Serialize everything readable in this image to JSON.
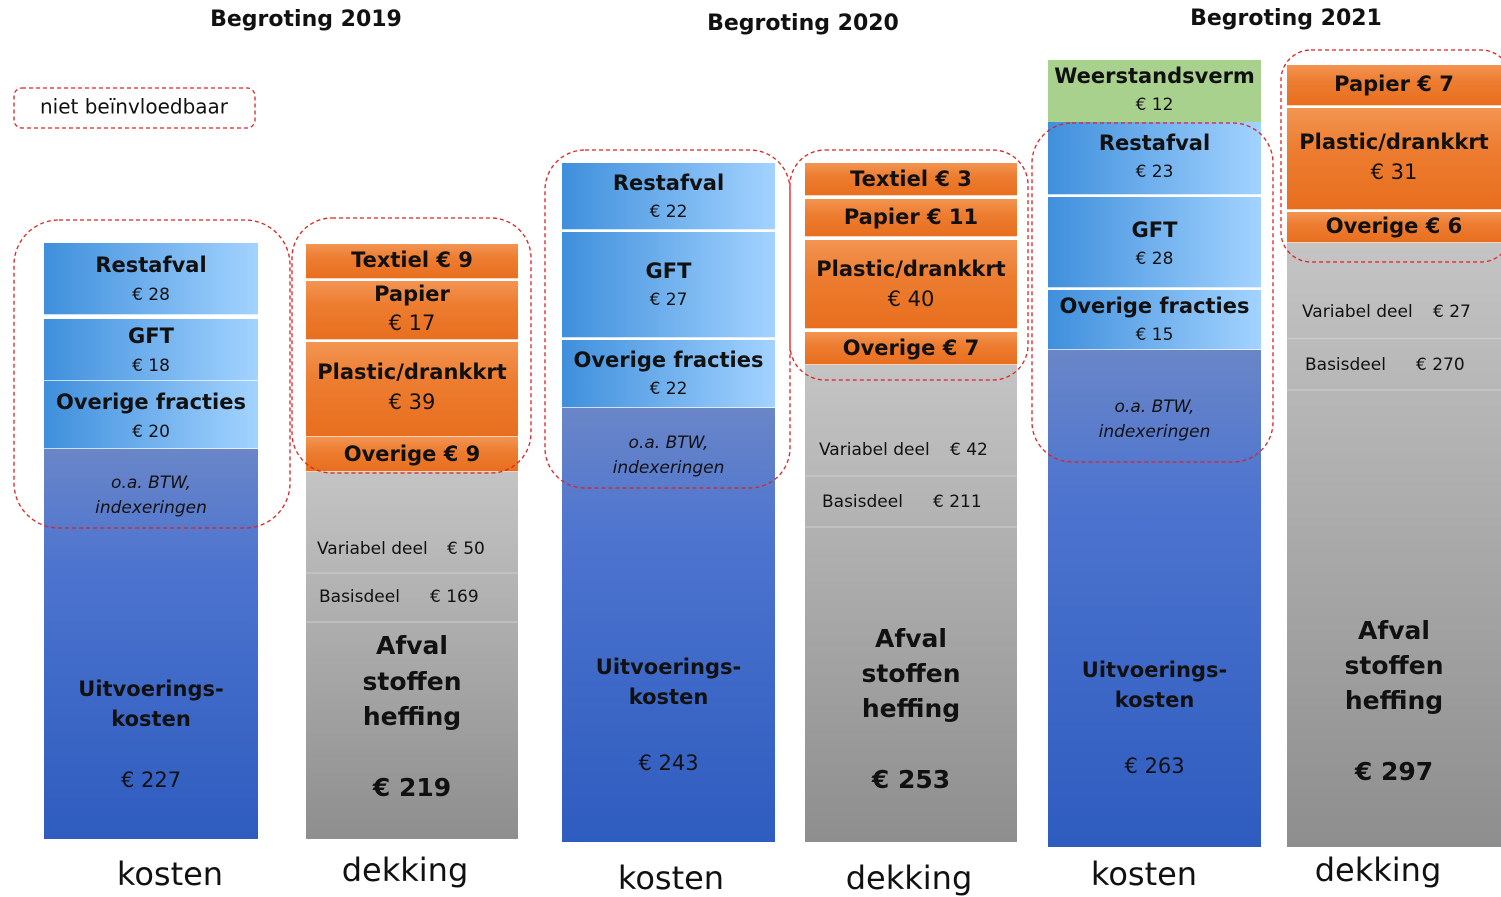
{
  "legend": "niet beïnvloedbaar",
  "titles": [
    "Begroting 2019",
    "Begroting 2020",
    "Begroting 2021"
  ],
  "columns": [
    {
      "label": "kosten",
      "blocks": [
        {
          "lines": [
            "Restafval",
            "€ 28"
          ]
        },
        {
          "lines": [
            "GFT",
            "€ 18"
          ]
        },
        {
          "lines": [
            "Overige fracties",
            "€ 20"
          ]
        },
        {
          "lines": [
            "o.a. BTW,",
            "indexeringen",
            "Uitvoerings-",
            "kosten",
            "€ 227"
          ]
        }
      ]
    },
    {
      "label": "dekking",
      "blocks": [
        {
          "lines": [
            "Textiel € 9"
          ]
        },
        {
          "lines": [
            "Papier",
            "€ 17"
          ]
        },
        {
          "lines": [
            "Plastic/drankkrt",
            "€ 39"
          ]
        },
        {
          "lines": [
            "Overige € 9"
          ]
        },
        {
          "lines": [
            "Variabel deel",
            "€ 50",
            "Basisdeel",
            "€ 169",
            "Afval",
            "stoffen",
            "heffing",
            "€ 219"
          ]
        }
      ]
    },
    {
      "label": "kosten",
      "blocks": [
        {
          "lines": [
            "Restafval",
            "€ 22"
          ]
        },
        {
          "lines": [
            "GFT",
            "€ 27"
          ]
        },
        {
          "lines": [
            "Overige fracties",
            "€ 22"
          ]
        },
        {
          "lines": [
            "o.a. BTW,",
            "indexeringen",
            "Uitvoerings-",
            "kosten",
            "€ 243"
          ]
        }
      ]
    },
    {
      "label": "dekking",
      "blocks": [
        {
          "lines": [
            "Textiel € 3"
          ]
        },
        {
          "lines": [
            "Papier € 11"
          ]
        },
        {
          "lines": [
            "Plastic/drankkrt",
            "€ 40"
          ]
        },
        {
          "lines": [
            "Overige € 7"
          ]
        },
        {
          "lines": [
            "Variabel deel",
            "€ 42",
            "Basisdeel",
            "€ 211",
            "Afval",
            "stoffen",
            "heffing",
            "€ 253"
          ]
        }
      ]
    },
    {
      "label": "kosten",
      "blocks": [
        {
          "lines": [
            "Weerstandsverm",
            "€ 12"
          ]
        },
        {
          "lines": [
            "Restafval",
            "€ 23"
          ]
        },
        {
          "lines": [
            "GFT",
            "€ 28"
          ]
        },
        {
          "lines": [
            "Overige fracties",
            "€ 15"
          ]
        },
        {
          "lines": [
            "o.a. BTW,",
            "indexeringen",
            "Uitvoerings-",
            "kosten",
            "€ 263"
          ]
        }
      ]
    },
    {
      "label": "dekking",
      "blocks": [
        {
          "lines": [
            "Papier € 7"
          ]
        },
        {
          "lines": [
            "Plastic/drankkrt",
            "€ 31"
          ]
        },
        {
          "lines": [
            "Overige € 6"
          ]
        },
        {
          "lines": [
            "Variabel deel",
            "€ 27",
            "Basisdeel",
            "€ 270",
            "Afval",
            "stoffen",
            "heffing",
            "€ 297"
          ]
        }
      ]
    }
  ]
}
